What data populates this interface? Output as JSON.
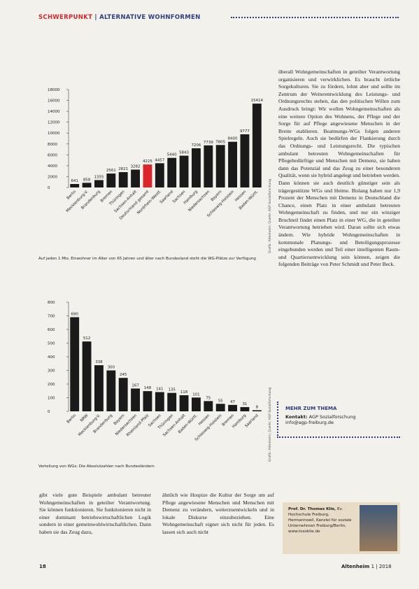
{
  "header": {
    "section": "SCHWERPUNKT",
    "title": "ALTERNATIVE WOHNFORMEN"
  },
  "chart_data": [
    {
      "type": "bar",
      "categories": [
        "Berlin",
        "Mecklenburg-V.",
        "Brandenburg",
        "Bremen",
        "Thüringen",
        "Sachsen-Anhalt",
        "Deutschland gesamt",
        "Nordrhein-Westf.",
        "Saarland",
        "Sachsen",
        "Hamburg",
        "Niedersachsen",
        "Bayern",
        "Schleswig-Holstein",
        "Hessen",
        "Baden-Württ."
      ],
      "values": [
        641,
        858,
        1355,
        2561,
        2821,
        3282,
        4225,
        4457,
        5440,
        5843,
        7206,
        7739,
        7805,
        8400,
        9777,
        15414
      ],
      "colors": [
        "#1a1a1a",
        "#1a1a1a",
        "#1a1a1a",
        "#1a1a1a",
        "#1a1a1a",
        "#1a1a1a",
        "#d8262b",
        "#1a1a1a",
        "#1a1a1a",
        "#1a1a1a",
        "#1a1a1a",
        "#1a1a1a",
        "#1a1a1a",
        "#1a1a1a",
        "#1a1a1a",
        "#1a1a1a"
      ],
      "ylim": [
        0,
        18000
      ],
      "yticks": [
        0,
        2000,
        4000,
        6000,
        8000,
        10000,
        12000,
        14000,
        16000,
        18000
      ],
      "caption": "Auf jeden 1 Mio. Einwohner im Alter von 65 Jahren und älter nach Bundesland steht die WG-Plätze zur Verfügung",
      "source": "Grafik: Altenheim; Quelle: AGP Sozialforschung"
    },
    {
      "type": "bar",
      "categories": [
        "Berlin",
        "NRW",
        "Mecklenburg-V.",
        "Brandenburg",
        "Bayern",
        "Niedersachsen",
        "Rheinland-Pfalz",
        "Sachsen",
        "Thüringen",
        "Sachsen-Anhalt",
        "Baden-Württ.",
        "Hessen",
        "Schleswig-Holstein",
        "Bremen",
        "Hamburg",
        "Saarland"
      ],
      "values": [
        690,
        512,
        338,
        300,
        245,
        167,
        148,
        141,
        135,
        118,
        101,
        75,
        55,
        47,
        31,
        8
      ],
      "color": "#1a1a1a",
      "ylim": [
        0,
        800
      ],
      "yticks": [
        0,
        100,
        200,
        300,
        400,
        500,
        600,
        700,
        800
      ],
      "caption": "Verteilung von WGs: Die Absolutzahlen nach Bundesländern",
      "source": "Grafik: Altenheim; Quelle: AGP Sozialforschung"
    }
  ],
  "article": {
    "right_column": "überall Wohngemeinschaften in geteilter Verantwortung organisieren und verwirklichen. Es braucht örtliche Sorgekulturen. Sie zu fördern, lohnt aber und sollte im Zentrum der Weiterentwicklung des Leistungs- und Ordnungsrechts stehen, das den politischen Willen zum Ausdruck bringt: Wir wollen Wohngemeinschaften als eine weitere Option des Wohnens, der Pflege und der Sorge für auf Pflege angewiesene Menschen in der Breite etablieren. Beatmungs-WGs folgen anderen Spielregeln. Auch sie bedürfen der Flankierung durch das Ordnungs- und Leistungsrecht. Die typischen ambulant betreuten Wohngemeinschaften für Pflegebedürftige und Menschen mit Demenz, sie haben dann das Potenzial und das Zeug zu einer besonderen Qualität, wenn sie hybrid angelegt und betrieben werden. Dann können sie auch deutlich günstiger sein als trägergestützte WGs und Heime. Bislang haben nur 1,9 Prozent der Menschen mit Demenz in Deutschland die Chance, einen Platz in einer ambulant betreuten Wohngemeinschaft zu finden, und nur ein winziger Bruchteil findet einen Platz in einer WG, die in geteilter Verantwortung betrieben wird. Daran sollte sich etwas ändern. Wie hybride Wohngemeinschaften in kommunale Planungs- und Beteiligungsprozesse eingebunden werden und Teil einer intelligenten Raum- und Quartiersentwicklung sein können, zeigen die folgenden Beiträge von Peter Schmidt und Peter Beck.",
    "bottom_left": "gibt viele gute Beispiele ambulant betreuter Wohngemeinschaften in geteilter Verantwortung. Sie können funktionieren. Sie funktionieren nicht in einer dominant betriebswirtschaftlichen Logik sondern in einer gemeinwohlwirtschaftlichen. Dann haben sie das Zeug dazu,",
    "bottom_right": "ähnlich wie Hospize die Kultur der Sorge um auf Pflege angewiesene Menschen und Menschen mit Demenz zu verändern, weiterzuentwickeln und in lokale Diskurse einzubeziehen. Eine Wohngemeinschaft eignet sich nicht für jeden. Es lassen sich auch nicht"
  },
  "info_box": {
    "title": "MEHR ZUM THEMA",
    "contact_label": "Kontakt:",
    "contact": "AGP Sozialforschung",
    "email": "info@agp-freiburg.de"
  },
  "author": {
    "name": "Prof. Dr. Thomas Klie,",
    "text": "Ev. Hochschule Freiburg, Hermannswil, Kanzlei für soziale Unternehmen Freiburg/Berlin, www.tosoklie.de"
  },
  "footer": {
    "page": "18",
    "magazine": "Altenheim",
    "issue": "1 | 2018"
  }
}
